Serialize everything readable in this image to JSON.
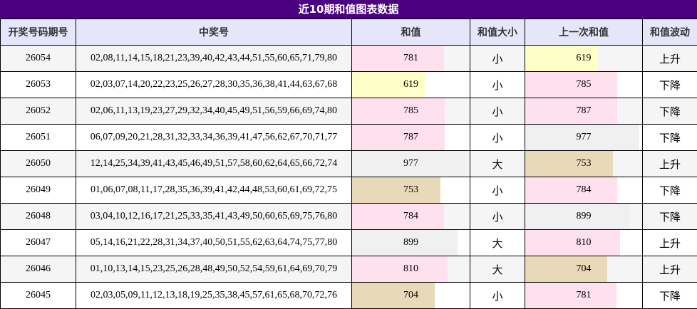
{
  "title": "近10期和值图表数据",
  "headers": [
    "开奖号码期号",
    "中奖号",
    "和值",
    "和值大小",
    "上一次和值",
    "和值波动"
  ],
  "bar_max": 1000,
  "colors": {
    "title_bg": "#4b0082",
    "header_bg": "#e6e6fa",
    "small_sum": "#ffffc8",
    "mid_sum": "#ffe0ee",
    "big_sum": "#f0f0f0",
    "tan_sum": "#e8d9b8"
  },
  "rows": [
    {
      "issue": "26054",
      "numbers": "02,08,11,14,15,18,21,23,39,40,42,43,44,51,55,60,65,71,79,80",
      "sum": 781,
      "size": "小",
      "prev_sum": 619,
      "trend": "上升",
      "sum_color": "#ffe0ee",
      "prev_color": "#ffffc8"
    },
    {
      "issue": "26053",
      "numbers": "02,03,07,14,20,22,23,25,26,27,28,30,35,36,38,41,44,63,67,68",
      "sum": 619,
      "size": "小",
      "prev_sum": 785,
      "trend": "下降",
      "sum_color": "#ffffc8",
      "prev_color": "#ffe0ee"
    },
    {
      "issue": "26052",
      "numbers": "02,06,11,13,19,23,27,29,32,34,40,45,49,51,56,59,66,69,74,80",
      "sum": 785,
      "size": "小",
      "prev_sum": 787,
      "trend": "下降",
      "sum_color": "#ffe0ee",
      "prev_color": "#ffe0ee"
    },
    {
      "issue": "26051",
      "numbers": "06,07,09,20,21,28,31,32,33,34,36,39,41,47,56,62,67,70,71,77",
      "sum": 787,
      "size": "小",
      "prev_sum": 977,
      "trend": "下降",
      "sum_color": "#ffe0ee",
      "prev_color": "#f0f0f0"
    },
    {
      "issue": "26050",
      "numbers": "12,14,25,34,39,41,43,45,46,49,51,57,58,60,62,64,65,66,72,74",
      "sum": 977,
      "size": "大",
      "prev_sum": 753,
      "trend": "上升",
      "sum_color": "#f0f0f0",
      "prev_color": "#e8d9b8"
    },
    {
      "issue": "26049",
      "numbers": "01,06,07,08,11,17,28,35,36,39,41,42,44,48,53,60,61,69,72,75",
      "sum": 753,
      "size": "小",
      "prev_sum": 784,
      "trend": "下降",
      "sum_color": "#e8d9b8",
      "prev_color": "#ffe0ee"
    },
    {
      "issue": "26048",
      "numbers": "03,04,10,12,16,17,21,25,33,35,41,43,49,50,60,65,69,75,76,80",
      "sum": 784,
      "size": "小",
      "prev_sum": 899,
      "trend": "下降",
      "sum_color": "#ffe0ee",
      "prev_color": "#f0f0f0"
    },
    {
      "issue": "26047",
      "numbers": "05,14,16,21,22,28,31,34,37,40,50,51,55,62,63,64,74,75,77,80",
      "sum": 899,
      "size": "大",
      "prev_sum": 810,
      "trend": "上升",
      "sum_color": "#f0f0f0",
      "prev_color": "#ffe0ee"
    },
    {
      "issue": "26046",
      "numbers": "01,10,13,14,15,23,25,26,28,48,49,50,52,54,59,61,64,69,70,79",
      "sum": 810,
      "size": "大",
      "prev_sum": 704,
      "trend": "上升",
      "sum_color": "#ffe0ee",
      "prev_color": "#e8d9b8"
    },
    {
      "issue": "26045",
      "numbers": "02,03,05,09,11,12,13,18,19,25,35,38,45,57,61,65,68,70,72,76",
      "sum": 704,
      "size": "小",
      "prev_sum": 781,
      "trend": "下降",
      "sum_color": "#e8d9b8",
      "prev_color": "#ffe0ee"
    }
  ]
}
